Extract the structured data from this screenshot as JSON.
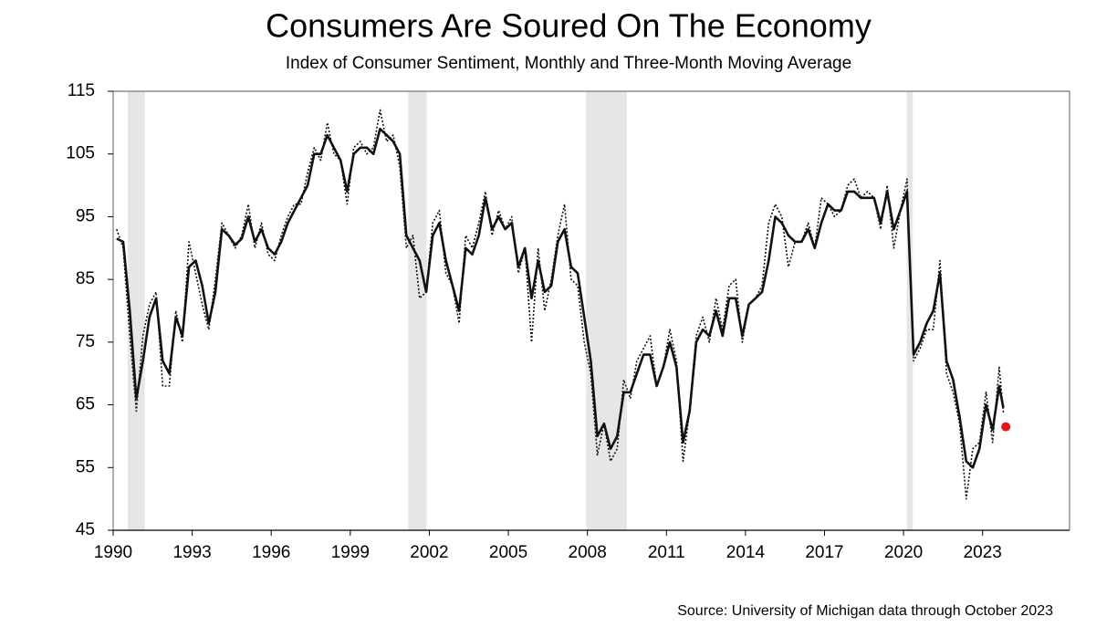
{
  "chart_data": {
    "type": "line",
    "title": "Consumers Are Soured On The Economy",
    "subtitle": "Index of Consumer Sentiment, Monthly and Three-Month Moving Average",
    "source": "Source: University of Michigan data through October 2023",
    "x": [
      1990.13,
      1990.38,
      1990.63,
      1990.88,
      1991.13,
      1991.38,
      1991.63,
      1991.88,
      1992.13,
      1992.38,
      1992.63,
      1992.88,
      1993.13,
      1993.38,
      1993.63,
      1993.88,
      1994.13,
      1994.38,
      1994.63,
      1994.88,
      1995.13,
      1995.38,
      1995.63,
      1995.88,
      1996.13,
      1996.38,
      1996.63,
      1996.88,
      1997.13,
      1997.38,
      1997.63,
      1997.88,
      1998.13,
      1998.38,
      1998.63,
      1998.88,
      1999.13,
      1999.38,
      1999.63,
      1999.88,
      2000.13,
      2000.38,
      2000.63,
      2000.88,
      2001.13,
      2001.38,
      2001.63,
      2001.88,
      2002.13,
      2002.38,
      2002.63,
      2002.88,
      2003.13,
      2003.38,
      2003.63,
      2003.88,
      2004.13,
      2004.38,
      2004.63,
      2004.88,
      2005.13,
      2005.38,
      2005.63,
      2005.88,
      2006.13,
      2006.38,
      2006.63,
      2006.88,
      2007.13,
      2007.38,
      2007.63,
      2007.88,
      2008.13,
      2008.38,
      2008.63,
      2008.88,
      2009.13,
      2009.38,
      2009.63,
      2009.88,
      2010.13,
      2010.38,
      2010.63,
      2010.88,
      2011.13,
      2011.38,
      2011.63,
      2011.88,
      2012.13,
      2012.38,
      2012.63,
      2012.88,
      2013.13,
      2013.38,
      2013.63,
      2013.88,
      2014.13,
      2014.38,
      2014.63,
      2014.88,
      2015.13,
      2015.38,
      2015.63,
      2015.88,
      2016.13,
      2016.38,
      2016.63,
      2016.88,
      2017.13,
      2017.38,
      2017.63,
      2017.88,
      2018.13,
      2018.38,
      2018.63,
      2018.88,
      2019.13,
      2019.38,
      2019.63,
      2019.88,
      2020.13,
      2020.38,
      2020.63,
      2020.88,
      2021.13,
      2021.38,
      2021.63,
      2021.88,
      2022.13,
      2022.38,
      2022.63,
      2022.88,
      2023.13,
      2023.38,
      2023.63,
      2023.79
    ],
    "series": [
      {
        "color": "#111111",
        "style": "solid",
        "values": [
          91.5,
          91,
          80,
          66,
          72,
          79,
          82,
          72,
          70,
          79,
          76,
          87,
          88,
          84,
          78,
          83,
          93,
          92,
          90.5,
          91.5,
          95,
          91,
          93,
          90,
          89,
          91,
          94,
          96,
          98,
          100,
          105,
          105,
          108,
          106,
          104,
          99,
          105,
          106,
          106,
          105,
          109,
          108,
          107,
          105,
          92,
          90,
          88,
          83,
          92,
          94,
          88,
          84,
          80,
          90,
          89,
          92,
          98,
          93,
          95,
          93,
          94,
          87,
          90,
          82,
          88,
          83,
          84,
          91,
          93,
          87,
          86,
          79,
          72,
          60,
          62,
          58,
          60,
          67,
          67,
          70,
          73,
          73,
          68,
          71,
          75,
          71,
          59,
          64,
          75,
          77,
          76,
          80,
          76,
          82,
          82,
          76,
          81,
          82,
          83,
          88,
          95,
          94,
          92,
          91,
          91,
          93,
          90,
          94,
          97,
          96,
          96,
          99,
          99,
          98,
          98,
          98,
          94,
          99,
          93,
          96,
          99,
          73,
          75,
          78,
          80,
          86,
          72,
          69,
          63,
          56,
          55,
          58,
          65,
          61,
          68,
          64.5
        ]
      },
      {
        "color": "#111111",
        "style": "dotted",
        "values": [
          93,
          90,
          76,
          64,
          76,
          81,
          83,
          68,
          68,
          80,
          75,
          91,
          86,
          81,
          77,
          85,
          94,
          92,
          90,
          92,
          97,
          90,
          94,
          89,
          88,
          92,
          95,
          97,
          97,
          102,
          106,
          104,
          110,
          105,
          104,
          97,
          106,
          107,
          105,
          106,
          112,
          107,
          108,
          103,
          90,
          92,
          82,
          83,
          94,
          96,
          86,
          84,
          78,
          92,
          90,
          94,
          99,
          92,
          96,
          93,
          95,
          86,
          90,
          75,
          90,
          80,
          85,
          92,
          97,
          85,
          84,
          75,
          70,
          57,
          62,
          56,
          58,
          69,
          66,
          72,
          74,
          76,
          68,
          71,
          77,
          72,
          56,
          64,
          76,
          79,
          75,
          82,
          77,
          84,
          85,
          75,
          81,
          82,
          84,
          94,
          97,
          95,
          87,
          91,
          91,
          94,
          90,
          98,
          97,
          95,
          96,
          100,
          101,
          98,
          99,
          98,
          93,
          100,
          90,
          96,
          101,
          72,
          74,
          77,
          77,
          88,
          70,
          67,
          62,
          50,
          58,
          59,
          67,
          59,
          71,
          63.8
        ]
      }
    ],
    "latest": {
      "x": 2023.88,
      "value": 61.5,
      "color": "#ee1111"
    },
    "recessions": [
      [
        1990.55,
        1991.2
      ],
      [
        2001.2,
        2001.9
      ],
      [
        2007.95,
        2009.5
      ],
      [
        2020.12,
        2020.35
      ]
    ],
    "xlim": [
      1990,
      2026.3
    ],
    "xticks": [
      1990,
      1993,
      1996,
      1999,
      2002,
      2005,
      2008,
      2011,
      2014,
      2017,
      2020,
      2023
    ],
    "ylim": [
      45,
      115
    ],
    "yticks": [
      45,
      55,
      65,
      75,
      85,
      95,
      105,
      115
    ]
  }
}
